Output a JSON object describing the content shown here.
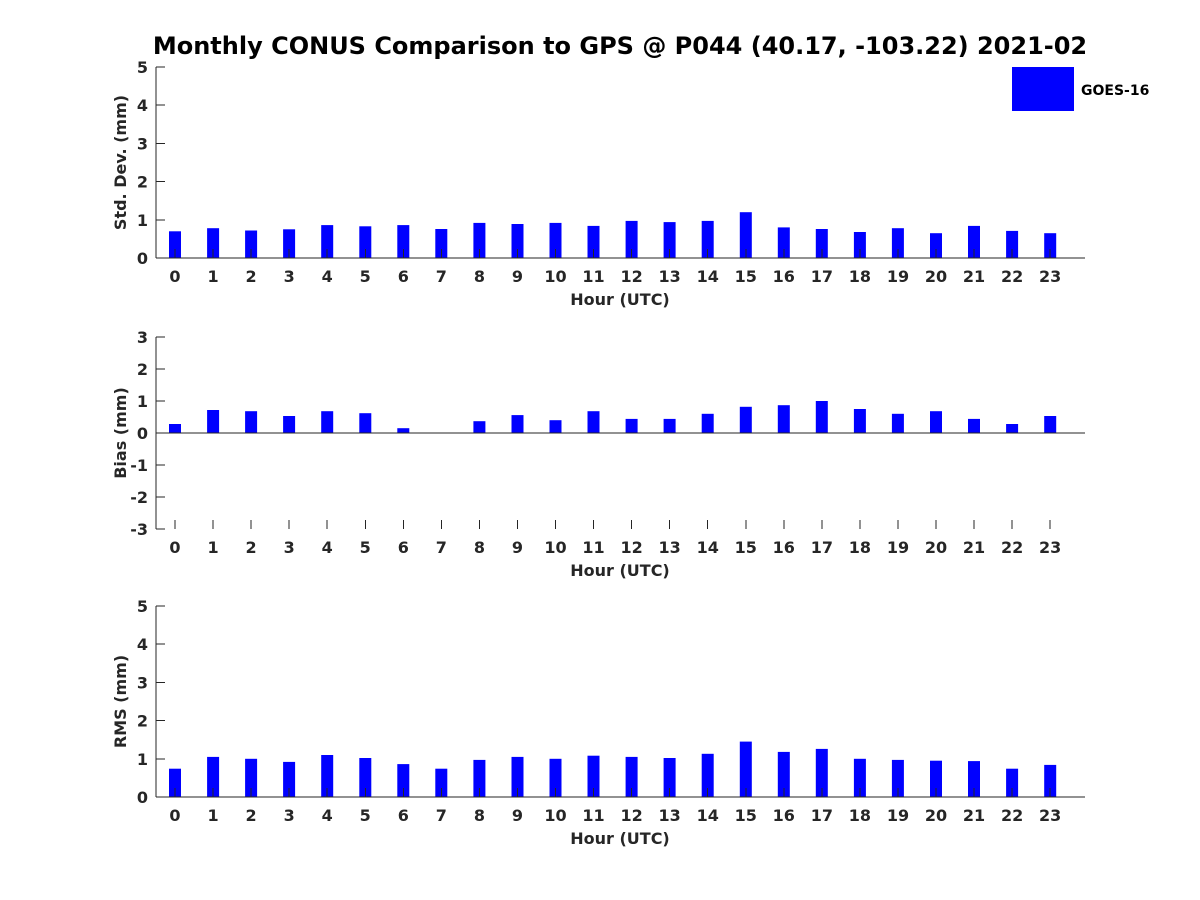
{
  "title": "Monthly CONUS Comparison to GPS @ P044 (40.17, -103.22) 2021-02",
  "legend": {
    "label": "GOES-16",
    "color": "#0000ff"
  },
  "colors": {
    "bar": "#0000ff",
    "axis": "#262626",
    "text": "#262626"
  },
  "chart_data": [
    {
      "type": "bar",
      "xlabel": "Hour (UTC)",
      "ylabel": "Std. Dev. (mm)",
      "ylim": [
        0,
        5
      ],
      "yticks": [
        0,
        1,
        2,
        3,
        4,
        5
      ],
      "categories": [
        "0",
        "1",
        "2",
        "3",
        "4",
        "5",
        "6",
        "7",
        "8",
        "9",
        "10",
        "11",
        "12",
        "13",
        "14",
        "15",
        "16",
        "17",
        "18",
        "19",
        "20",
        "21",
        "22",
        "23"
      ],
      "series": [
        {
          "name": "GOES-16",
          "values": [
            0.7,
            0.78,
            0.72,
            0.75,
            0.86,
            0.83,
            0.86,
            0.76,
            0.92,
            0.89,
            0.92,
            0.84,
            0.97,
            0.94,
            0.97,
            1.2,
            0.8,
            0.76,
            0.68,
            0.78,
            0.65,
            0.84,
            0.71,
            0.65
          ]
        }
      ],
      "legend_position": "top-right",
      "grid": false
    },
    {
      "type": "bar",
      "xlabel": "Hour (UTC)",
      "ylabel": "Bias (mm)",
      "ylim": [
        -3,
        3
      ],
      "yticks": [
        -3,
        -2,
        -1,
        0,
        1,
        2,
        3
      ],
      "categories": [
        "0",
        "1",
        "2",
        "3",
        "4",
        "5",
        "6",
        "7",
        "8",
        "9",
        "10",
        "11",
        "12",
        "13",
        "14",
        "15",
        "16",
        "17",
        "18",
        "19",
        "20",
        "21",
        "22",
        "23"
      ],
      "series": [
        {
          "name": "GOES-16",
          "values": [
            0.28,
            0.72,
            0.68,
            0.53,
            0.68,
            0.62,
            0.15,
            0.0,
            0.37,
            0.56,
            0.4,
            0.68,
            0.44,
            0.44,
            0.6,
            0.82,
            0.87,
            1.0,
            0.75,
            0.6,
            0.68,
            0.44,
            0.28,
            0.53
          ]
        }
      ],
      "zero_line": true,
      "grid": false
    },
    {
      "type": "bar",
      "xlabel": "Hour (UTC)",
      "ylabel": "RMS (mm)",
      "ylim": [
        0,
        5
      ],
      "yticks": [
        0,
        1,
        2,
        3,
        4,
        5
      ],
      "categories": [
        "0",
        "1",
        "2",
        "3",
        "4",
        "5",
        "6",
        "7",
        "8",
        "9",
        "10",
        "11",
        "12",
        "13",
        "14",
        "15",
        "16",
        "17",
        "18",
        "19",
        "20",
        "21",
        "22",
        "23"
      ],
      "series": [
        {
          "name": "GOES-16",
          "values": [
            0.74,
            1.05,
            1.0,
            0.92,
            1.1,
            1.02,
            0.86,
            0.74,
            0.97,
            1.05,
            1.0,
            1.08,
            1.05,
            1.02,
            1.13,
            1.45,
            1.18,
            1.26,
            1.0,
            0.97,
            0.95,
            0.94,
            0.74,
            0.84
          ]
        }
      ],
      "grid": false
    }
  ]
}
